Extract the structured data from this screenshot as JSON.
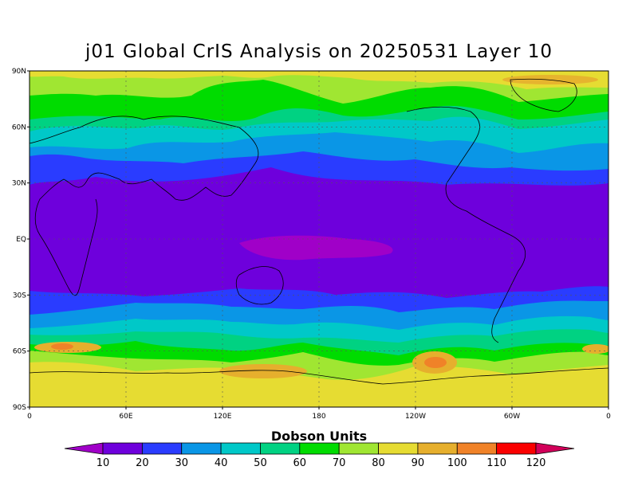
{
  "title": "j01 Global CrIS Analysis on 20250531 Layer 10",
  "lat_labels": [
    "90N",
    "60N",
    "30N",
    "EQ",
    "30S",
    "60S",
    "90S"
  ],
  "lon_labels": [
    "0",
    "60E",
    "120E",
    "180",
    "120W",
    "60W",
    "0"
  ],
  "colorbar": {
    "title": "Dobson Units",
    "levels": [
      "10",
      "20",
      "30",
      "40",
      "50",
      "60",
      "70",
      "80",
      "90",
      "100",
      "110",
      "120"
    ],
    "colors": [
      "#a000c8",
      "#6e00dc",
      "#2a3cff",
      "#0a96e6",
      "#00c8c8",
      "#00d282",
      "#00dc00",
      "#a0e632",
      "#e6dc32",
      "#e6af2d",
      "#f08228",
      "#fa0000",
      "#d2005a"
    ]
  },
  "chart_data": {
    "type": "heatmap",
    "title": "j01 Global CrIS Analysis on 20250531 Layer 10",
    "xlabel": "",
    "ylabel": "",
    "x_ticks": [
      "0",
      "60E",
      "120E",
      "180",
      "120W",
      "60W",
      "0"
    ],
    "y_ticks": [
      "90N",
      "60N",
      "30N",
      "EQ",
      "30S",
      "60S",
      "90S"
    ],
    "colorbar_label": "Dobson Units",
    "colorbar_levels": [
      10,
      20,
      30,
      40,
      50,
      60,
      70,
      80,
      90,
      100,
      110,
      120
    ],
    "grid": true,
    "zonal_profile": {
      "lat": [
        90,
        80,
        70,
        60,
        50,
        40,
        30,
        20,
        10,
        0,
        -10,
        -20,
        -30,
        -40,
        -50,
        -60,
        -70,
        -80,
        -90
      ],
      "value": [
        85,
        80,
        72,
        62,
        48,
        35,
        22,
        17,
        17,
        17,
        17,
        19,
        26,
        40,
        58,
        75,
        82,
        82,
        82
      ]
    }
  }
}
